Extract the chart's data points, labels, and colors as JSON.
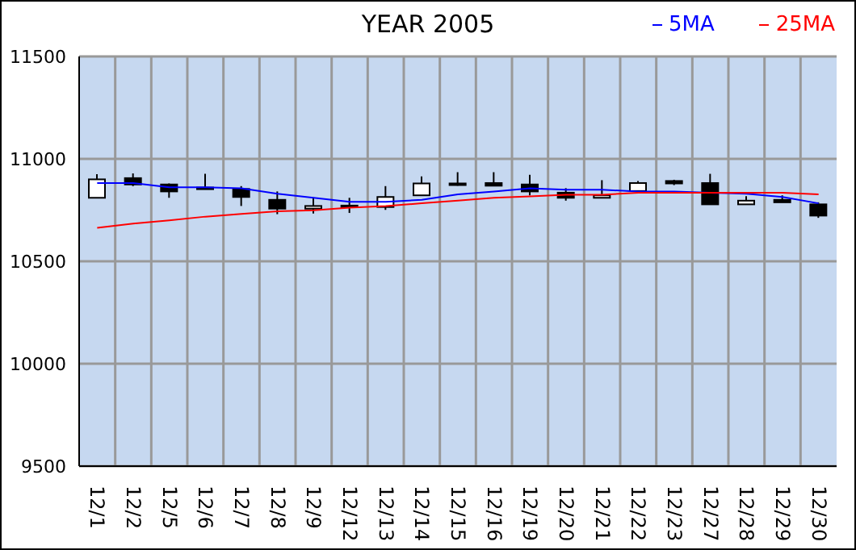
{
  "chart_data": {
    "type": "candlestick",
    "title": "YEAR 2005",
    "categories": [
      "12/1",
      "12/2",
      "12/5",
      "12/6",
      "12/7",
      "12/8",
      "12/9",
      "12/12",
      "12/13",
      "12/14",
      "12/15",
      "12/16",
      "12/19",
      "12/20",
      "12/21",
      "12/22",
      "12/23",
      "12/27",
      "12/28",
      "12/29",
      "12/30"
    ],
    "ohlc": [
      [
        10810,
        10925,
        10810,
        10900
      ],
      [
        10906,
        10929,
        10867,
        10875
      ],
      [
        10875,
        10880,
        10810,
        10841
      ],
      [
        10860,
        10927,
        10850,
        10855
      ],
      [
        10853,
        10867,
        10770,
        10814
      ],
      [
        10800,
        10841,
        10730,
        10757
      ],
      [
        10757,
        10812,
        10733,
        10770
      ],
      [
        10770,
        10810,
        10736,
        10772
      ],
      [
        10765,
        10867,
        10751,
        10814
      ],
      [
        10822,
        10914,
        10822,
        10880
      ],
      [
        10878,
        10935,
        10869,
        10880
      ],
      [
        10882,
        10935,
        10869,
        10869
      ],
      [
        10875,
        10922,
        10822,
        10841
      ],
      [
        10835,
        10857,
        10796,
        10810
      ],
      [
        10810,
        10896,
        10810,
        10822
      ],
      [
        10843,
        10892,
        10843,
        10882
      ],
      [
        10892,
        10898,
        10872,
        10880
      ],
      [
        10882,
        10927,
        10778,
        10778
      ],
      [
        10778,
        10818,
        10778,
        10796
      ],
      [
        10800,
        10822,
        10788,
        10788
      ],
      [
        10778,
        10788,
        10712,
        10723
      ]
    ],
    "series": [
      {
        "name": "5MA",
        "type": "line",
        "color": "#0000ff",
        "values": [
          10882,
          10882,
          10861,
          10861,
          10856,
          10830,
          10810,
          10790,
          10790,
          10800,
          10827,
          10841,
          10856,
          10849,
          10849,
          10841,
          10841,
          10835,
          10830,
          10814,
          10783
        ]
      },
      {
        "name": "25MA",
        "type": "line",
        "color": "#ff0000",
        "values": [
          10663,
          10684,
          10700,
          10718,
          10731,
          10744,
          10749,
          10762,
          10770,
          10783,
          10796,
          10810,
          10817,
          10825,
          10825,
          10835,
          10835,
          10835,
          10835,
          10835,
          10827
        ]
      }
    ],
    "ylim": [
      9500,
      11500
    ],
    "yticks": [
      9500,
      10000,
      10500,
      11000,
      11500
    ],
    "grid": true,
    "legend": "top right"
  }
}
